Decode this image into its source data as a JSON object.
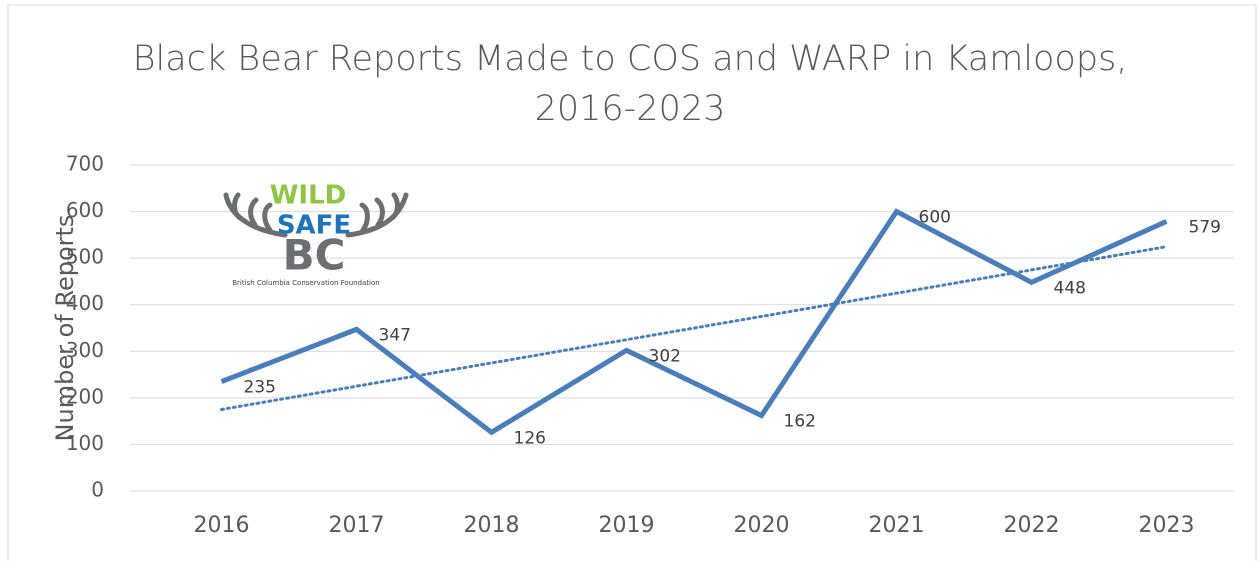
{
  "chart_data": {
    "type": "line",
    "title": "Black Bear Reports Made to COS and WARP in Kamloops, 2016-2023",
    "y_axis_label": "Number of Reports",
    "categories": [
      "2016",
      "2017",
      "2018",
      "2019",
      "2020",
      "2021",
      "2022",
      "2023"
    ],
    "series": [
      {
        "name": "Black Bear Reports",
        "color": "#4a7ebb",
        "values": [
          235,
          347,
          126,
          302,
          162,
          600,
          448,
          579
        ]
      }
    ],
    "trendline": {
      "type": "linear",
      "color": "#4a7ebb",
      "style": "dotted"
    },
    "ylim": [
      0,
      700
    ],
    "yticks": [
      0,
      100,
      200,
      300,
      400,
      500,
      600,
      700
    ],
    "grid": true,
    "logo": {
      "line1": "WILD",
      "line2": "SAFE",
      "line3": "BC",
      "caption": "British Columbia Conservation Foundation"
    }
  }
}
